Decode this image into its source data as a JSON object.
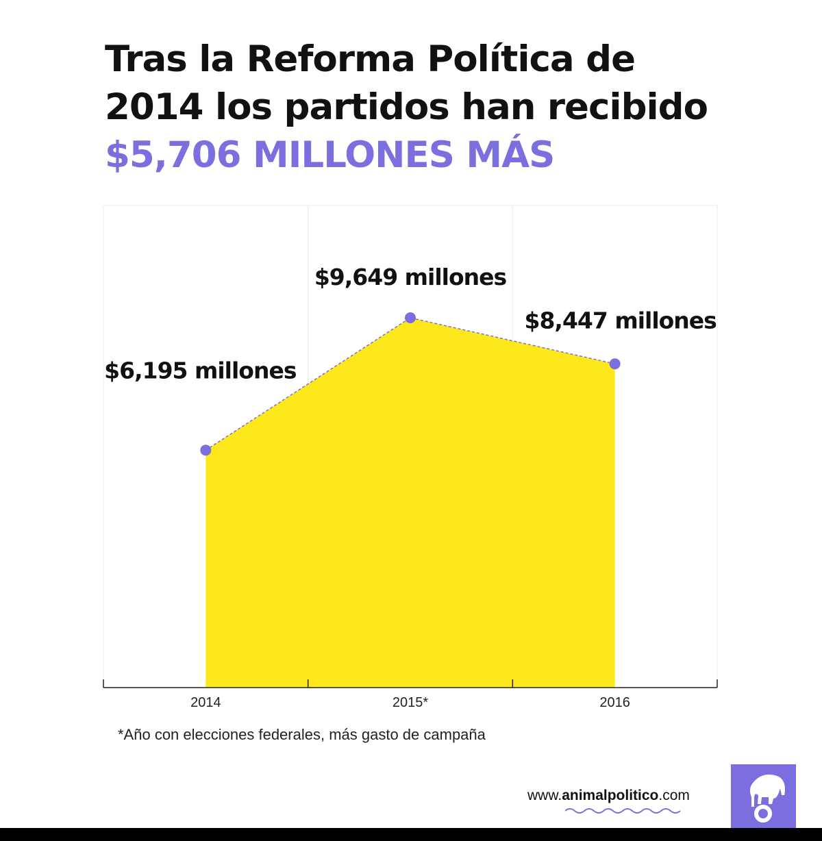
{
  "title": {
    "line1": "Tras la Reforma Política de",
    "line2": "2014 los partidos han recibido",
    "highlight": "$5,706 MILLONES MÁS"
  },
  "chart_data": {
    "type": "area",
    "categories": [
      "2014",
      "2015*",
      "2016"
    ],
    "values": [
      6195,
      9649,
      8447
    ],
    "data_labels": [
      "$6,195 millones",
      "$9,649 millones",
      "$8,447 millones"
    ],
    "unit": "millones de pesos",
    "ylim": [
      0,
      12580
    ],
    "grid": true,
    "fill_color": "#fde81b",
    "line_color": "#7b6fe0",
    "line_style": "dashed",
    "marker_color": "#7b6fe0"
  },
  "footnote": "*Año con elecciones federales, más gasto de campaña",
  "footer": {
    "site_prefix": "www.",
    "site_bold": "animalpolitico",
    "site_suffix": ".com",
    "logo_icon": "elephant-icon",
    "accent": "#7b6fe0"
  }
}
